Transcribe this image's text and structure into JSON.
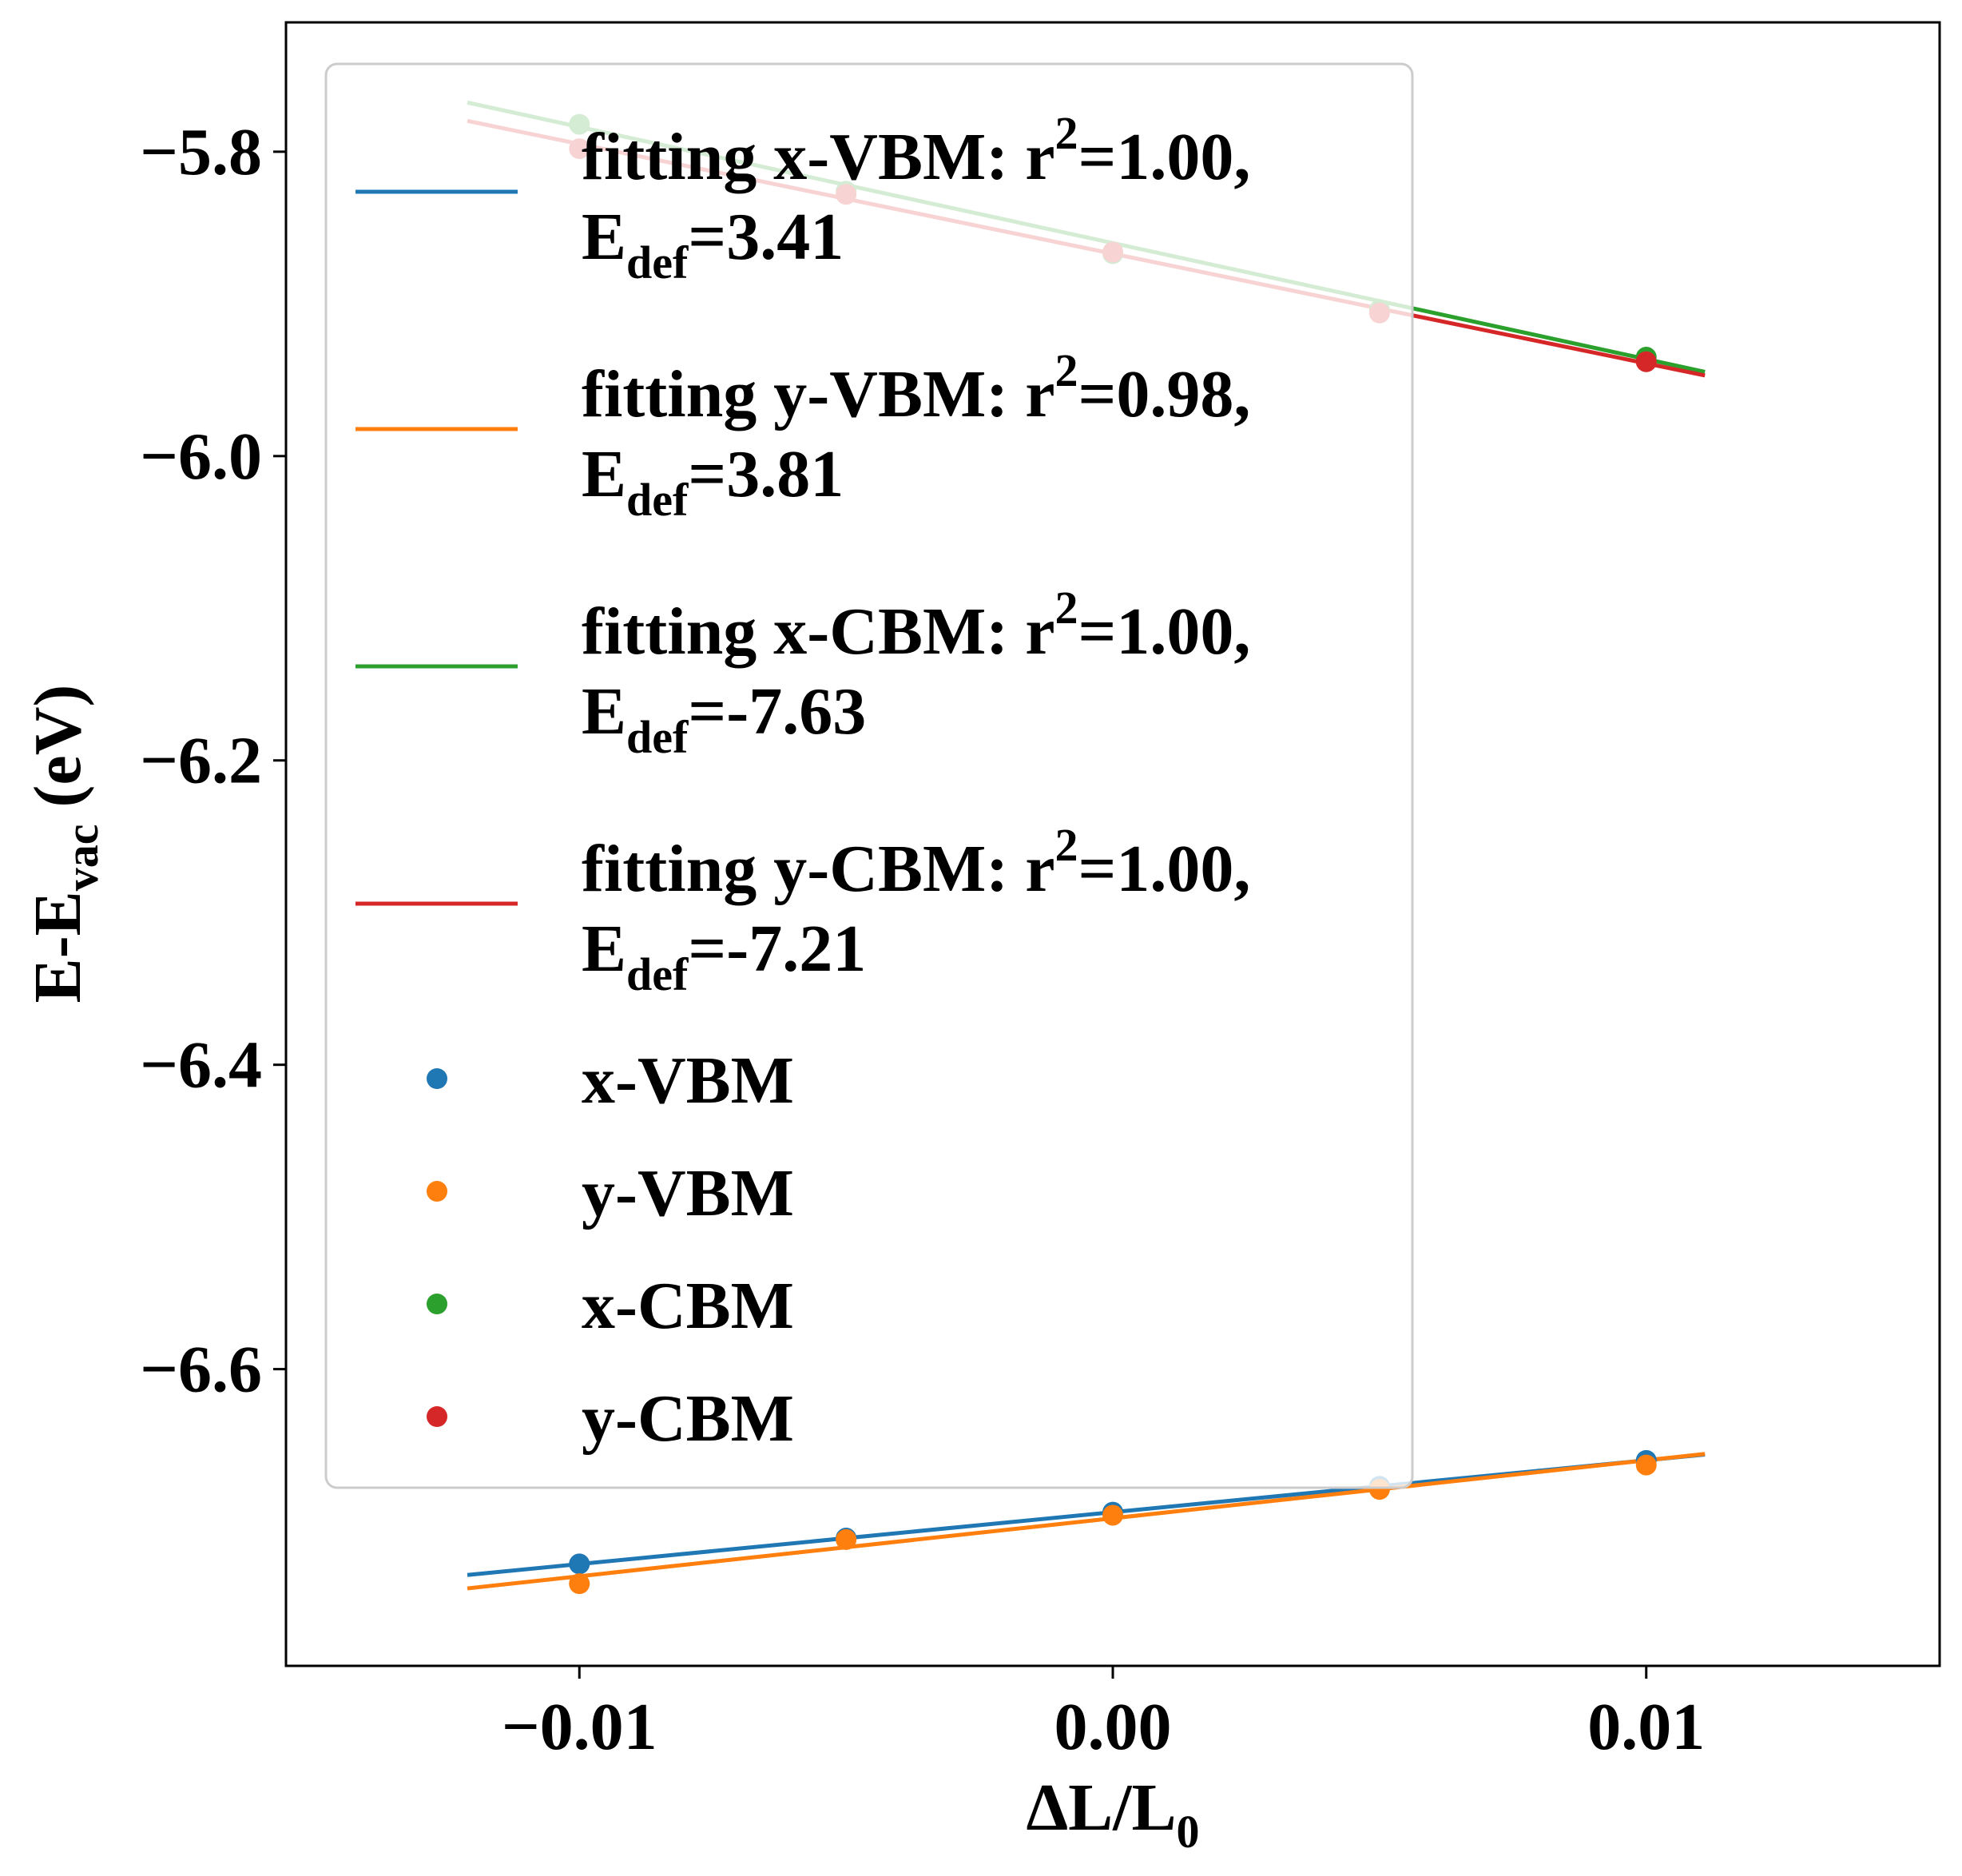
{
  "chart_data": {
    "type": "scatter",
    "xlabel": "ΔL/L",
    "xlabel_sub": "0",
    "ylabel": "E-E",
    "ylabel_sub": "vac",
    "ylabel_suffix": " (eV)",
    "xlim": [
      -0.0155,
      0.0155
    ],
    "ylim": [
      -6.795,
      -5.715
    ],
    "xticks": [
      -0.01,
      0.0,
      0.01
    ],
    "xtick_labels": [
      "−0.01",
      "0.00",
      "0.01"
    ],
    "yticks": [
      -5.8,
      -6.0,
      -6.2,
      -6.4,
      -6.6
    ],
    "ytick_labels": [
      "−5.8",
      "−6.0",
      "−6.2",
      "−6.4",
      "−6.6"
    ],
    "grid": false,
    "legend_location": "upper left",
    "x": [
      -0.01,
      -0.005,
      0.0,
      0.005,
      0.01
    ],
    "series": [
      {
        "name": "x-VBM",
        "color": "#1f77b4",
        "values": [
          -6.728,
          -6.711,
          -6.694,
          -6.677,
          -6.66
        ],
        "fit_label": "fitting x-VBM: r",
        "fit_r2": "=1.00,",
        "fit_edef": "=3.41",
        "fit_line": {
          "slope": 3.41,
          "intercept": -6.694
        }
      },
      {
        "name": "y-VBM",
        "color": "#ff7f0e",
        "values": [
          -6.741,
          -6.712,
          -6.696,
          -6.679,
          -6.663
        ],
        "fit_label": "fitting y-VBM: r",
        "fit_r2": "=0.98,",
        "fit_edef": "=3.81",
        "fit_line": {
          "slope": 3.81,
          "intercept": -6.698
        }
      },
      {
        "name": "x-CBM",
        "color": "#2ca02c",
        "values": [
          -5.782,
          -5.826,
          -5.867,
          -5.904,
          -5.935
        ],
        "fit_label": "fitting x-CBM: r",
        "fit_r2": "=1.00,",
        "fit_edef": "=-7.63",
        "fit_line": {
          "slope": -7.63,
          "intercept": -5.86
        }
      },
      {
        "name": "y-CBM",
        "color": "#d62728",
        "values": [
          -5.798,
          -5.828,
          -5.866,
          -5.906,
          -5.938
        ],
        "fit_label": "fitting y-CBM: r",
        "fit_r2": "=1.00,",
        "fit_edef": "=-7.21",
        "fit_line": {
          "slope": -7.21,
          "intercept": -5.867
        }
      }
    ],
    "fit_x_range": [
      -0.0121,
      0.0111
    ],
    "legend_text_common": {
      "r_sup": "2",
      "edef_base": "E",
      "edef_sub": "def"
    }
  }
}
